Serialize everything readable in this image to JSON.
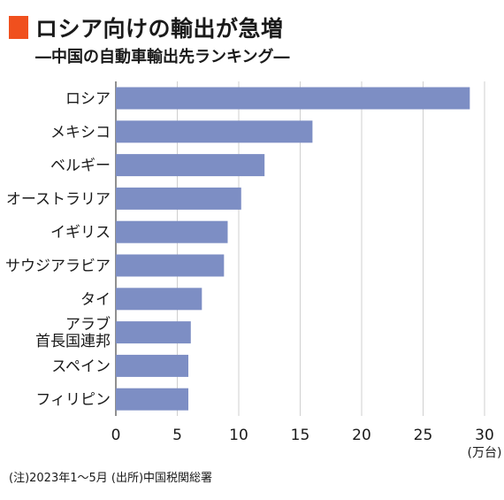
{
  "header": {
    "title": "ロシア向けの輸出が急増",
    "subtitle": "―中国の自動車輸出先ランキング―",
    "marker_color": "#f0501e"
  },
  "chart_data": {
    "type": "bar",
    "orientation": "horizontal",
    "categories": [
      "ロシア",
      "メキシコ",
      "ベルギー",
      "オーストラリア",
      "イギリス",
      "サウジアラビア",
      "タイ",
      "アラブ\n首長国連邦",
      "スペイン",
      "フィリピン"
    ],
    "values": [
      28.8,
      16.0,
      12.1,
      10.2,
      9.1,
      8.8,
      7.0,
      6.1,
      5.9,
      5.9
    ],
    "xlim": [
      0,
      30
    ],
    "xticks": [
      0,
      5,
      10,
      15,
      20,
      25,
      30
    ],
    "unit_label": "(万台)",
    "bar_color": "#7d8ec4",
    "grid": true,
    "grid_color": "#cfcfcf",
    "title": "ロシア向けの輸出が急増",
    "subtitle": "―中国の自動車輸出先ランキング―"
  },
  "footnote": "(注)2023年1～5月 (出所)中国税関総署"
}
